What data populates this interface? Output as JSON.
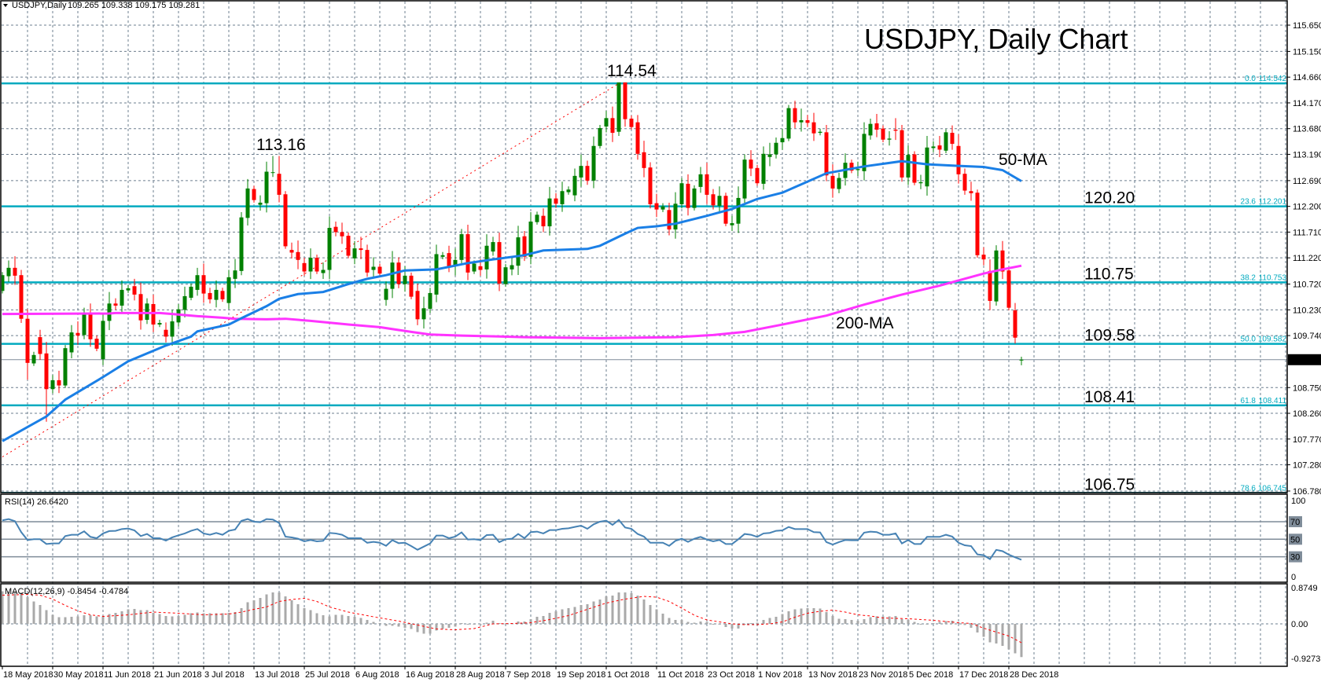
{
  "header": {
    "symbol": "USDJPY,Daily",
    "ohlc": "109.265 109.338 109.175 109.281"
  },
  "title": "USDJPY, Daily Chart",
  "annotations": {
    "peak_jul": "113.16",
    "peak_oct": "114.54",
    "ma50": "50-MA",
    "ma200": "200-MA"
  },
  "level_labels": [
    "120.20",
    "110.75",
    "109.58",
    "108.41",
    "106.75"
  ],
  "current_price": "109.281",
  "rsi_label": "RSI(14) 26.6420",
  "macd_label": "MACD(12,26,9) -0.8454 -0.4784",
  "colors": {
    "bull": "#008000",
    "bear": "#ff0000",
    "ma50": "#1a7fe6",
    "ma200": "#ff33ff",
    "fib": "#00aabf",
    "rsi": "#4682b4",
    "macd_hist": "#a9a9a9",
    "signal": "#ff0000",
    "grid": "#6e7f8f"
  },
  "chart_data": {
    "type": "candlestick",
    "title": "USDJPY, Daily Chart",
    "price_axis": {
      "range": [
        106.78,
        115.65
      ],
      "ticks": [
        "115.650",
        "115.150",
        "114.660",
        "114.170",
        "113.680",
        "113.190",
        "112.690",
        "112.200",
        "111.710",
        "111.220",
        "110.720",
        "110.230",
        "109.740",
        "108.750",
        "108.260",
        "107.770",
        "107.280",
        "106.780"
      ]
    },
    "dates": [
      {
        "label": "18 May 2018",
        "bar": 0
      },
      {
        "label": "30 May 2018",
        "bar": 8
      },
      {
        "label": "11 Jun 2018",
        "bar": 16
      },
      {
        "label": "21 Jun 2018",
        "bar": 24
      },
      {
        "label": "3 Jul 2018",
        "bar": 32
      },
      {
        "label": "13 Jul 2018",
        "bar": 40
      },
      {
        "label": "25 Jul 2018",
        "bar": 48
      },
      {
        "label": "6 Aug 2018",
        "bar": 56
      },
      {
        "label": "16 Aug 2018",
        "bar": 64
      },
      {
        "label": "28 Aug 2018",
        "bar": 72
      },
      {
        "label": "7 Sep 2018",
        "bar": 80
      },
      {
        "label": "19 Sep 2018",
        "bar": 88
      },
      {
        "label": "1 Oct 2018",
        "bar": 96
      },
      {
        "label": "11 Oct 2018",
        "bar": 104
      },
      {
        "label": "23 Oct 2018",
        "bar": 112
      },
      {
        "label": "1 Nov 2018",
        "bar": 120
      },
      {
        "label": "13 Nov 2018",
        "bar": 128
      },
      {
        "label": "23 Nov 2018",
        "bar": 136
      },
      {
        "label": "5 Dec 2018",
        "bar": 144
      },
      {
        "label": "17 Dec 2018",
        "bar": 152
      },
      {
        "label": "28 Dec 2018",
        "bar": 160
      }
    ],
    "open": [
      110.59,
      110.87,
      111.03,
      110.89,
      110.06,
      109.21,
      109.71,
      109.4,
      108.72,
      108.89,
      108.79,
      109.42,
      109.79,
      109.75,
      110.17,
      109.68,
      109.29,
      110.02,
      110.35,
      110.31,
      110.6,
      110.68,
      110.53,
      110.04,
      110.34,
      109.95,
      109.85,
      109.72,
      109.99,
      110.23,
      110.46,
      110.61,
      110.89,
      110.55,
      110.42,
      110.59,
      110.36,
      110.82,
      110.97,
      111.98,
      112.53,
      112.23,
      112.26,
      112.84,
      112.82,
      112.43,
      111.37,
      111.33,
      111.12,
      110.96,
      111.22,
      110.93,
      110.99,
      111.81,
      111.71,
      111.64,
      111.21,
      111.4,
      111.37,
      110.99,
      111.05,
      110.42,
      110.63,
      111.13,
      110.72,
      110.88,
      110.59,
      110.05,
      110.25,
      110.52,
      111.24,
      111.31,
      111.06,
      111.18,
      111.67,
      110.96,
      111.06,
      111.0,
      111.34,
      111.52,
      110.72,
      111.0,
      111.07,
      111.63,
      111.24,
      111.9,
      112.02,
      111.82,
      112.35,
      112.24,
      112.47,
      112.41,
      112.75,
      112.97,
      112.69,
      113.35,
      113.72,
      113.88,
      113.62,
      114.56,
      113.87,
      113.8,
      113.23,
      112.94,
      112.26,
      112.14,
      112.13,
      111.76,
      112.24,
      112.63,
      112.17,
      112.57,
      112.81,
      112.43,
      112.21,
      112.4,
      111.84,
      111.87,
      112.35,
      113.09,
      112.93,
      112.63,
      113.14,
      113.19,
      113.42,
      113.49,
      114.07,
      113.8,
      113.84,
      113.8,
      113.6,
      113.61,
      112.78,
      112.53,
      112.74,
      113.03,
      112.89,
      112.87,
      113.55,
      113.78,
      113.68,
      113.47,
      113.66,
      113.65,
      112.75,
      113.19,
      112.64,
      112.58,
      113.31,
      113.36,
      113.26,
      113.6,
      113.35,
      112.82,
      112.49,
      112.46,
      111.28,
      110.97,
      110.39,
      111.36,
      110.98,
      110.22,
      109.265
    ],
    "close": [
      110.89,
      111.03,
      110.88,
      110.06,
      109.22,
      109.37,
      109.39,
      108.72,
      108.89,
      108.79,
      109.5,
      109.8,
      109.74,
      110.17,
      109.67,
      109.49,
      110.02,
      110.35,
      110.31,
      110.61,
      110.64,
      110.52,
      110.03,
      110.35,
      109.95,
      109.98,
      109.72,
      110.01,
      110.24,
      110.49,
      110.67,
      110.89,
      110.54,
      110.43,
      110.61,
      110.43,
      110.85,
      110.98,
      111.99,
      112.54,
      112.32,
      112.27,
      112.86,
      112.85,
      112.42,
      111.44,
      111.32,
      111.18,
      110.96,
      111.22,
      110.96,
      110.99,
      111.79,
      111.71,
      111.63,
      111.26,
      111.4,
      111.37,
      110.94,
      111.05,
      110.92,
      110.63,
      111.13,
      110.72,
      110.88,
      110.48,
      110.05,
      110.26,
      110.55,
      111.29,
      111.27,
      111.06,
      111.18,
      111.67,
      110.94,
      111.11,
      110.99,
      111.45,
      111.52,
      110.73,
      111.04,
      111.08,
      111.61,
      111.24,
      111.91,
      112.04,
      111.82,
      112.35,
      112.25,
      112.49,
      112.52,
      112.78,
      112.97,
      112.69,
      113.35,
      113.69,
      113.88,
      113.6,
      114.56,
      113.86,
      113.71,
      113.2,
      112.93,
      112.24,
      112.14,
      112.2,
      111.76,
      112.25,
      112.64,
      112.17,
      112.54,
      112.81,
      112.42,
      112.22,
      112.4,
      111.87,
      111.88,
      112.36,
      113.09,
      112.92,
      112.64,
      113.2,
      113.19,
      113.41,
      113.5,
      114.07,
      113.8,
      113.84,
      113.79,
      113.59,
      113.62,
      112.79,
      112.54,
      112.74,
      113.03,
      112.88,
      112.91,
      113.58,
      113.77,
      113.66,
      113.47,
      113.49,
      113.64,
      112.75,
      113.18,
      112.65,
      112.66,
      113.32,
      113.34,
      113.28,
      113.61,
      113.39,
      112.81,
      112.5,
      112.45,
      111.27,
      111.19,
      110.4,
      111.36,
      110.96,
      110.27,
      109.7,
      109.281
    ],
    "high_overrides": {
      "42": 113.05,
      "43": 113.16,
      "44": 113.16,
      "98": 114.55,
      "99": 114.55,
      "162": 109.338
    },
    "low_overrides": {
      "4": 108.9,
      "7": 108.1,
      "162": 109.175
    },
    "ma50": [
      [
        0,
        107.73
      ],
      [
        7,
        108.2
      ],
      [
        10,
        108.52
      ],
      [
        16,
        108.95
      ],
      [
        20,
        109.25
      ],
      [
        26,
        109.55
      ],
      [
        30,
        109.72
      ],
      [
        31,
        109.82
      ],
      [
        36,
        109.95
      ],
      [
        38,
        110.07
      ],
      [
        42,
        110.3
      ],
      [
        44,
        110.44
      ],
      [
        47,
        110.53
      ],
      [
        51,
        110.57
      ],
      [
        55,
        110.72
      ],
      [
        58,
        110.82
      ],
      [
        61,
        110.89
      ],
      [
        64,
        110.98
      ],
      [
        69,
        111.0
      ],
      [
        74,
        111.12
      ],
      [
        78,
        111.19
      ],
      [
        83,
        111.27
      ],
      [
        86,
        111.36
      ],
      [
        93,
        111.39
      ],
      [
        95,
        111.45
      ],
      [
        99,
        111.68
      ],
      [
        101,
        111.79
      ],
      [
        104,
        111.82
      ],
      [
        107,
        111.87
      ],
      [
        112,
        112.02
      ],
      [
        116,
        112.15
      ],
      [
        120,
        112.34
      ],
      [
        124,
        112.46
      ],
      [
        131,
        112.83
      ],
      [
        137,
        112.96
      ],
      [
        143,
        113.06
      ],
      [
        147,
        113.0
      ],
      [
        152,
        112.97
      ],
      [
        156,
        112.95
      ],
      [
        159,
        112.89
      ],
      [
        162,
        112.68
      ]
    ],
    "ma200": [
      [
        0,
        110.15
      ],
      [
        17,
        110.16
      ],
      [
        18,
        110.17
      ],
      [
        25,
        110.17
      ],
      [
        27,
        110.15
      ],
      [
        31,
        110.11
      ],
      [
        35,
        110.08
      ],
      [
        37,
        110.06
      ],
      [
        42,
        110.05
      ],
      [
        45,
        110.06
      ],
      [
        49,
        110.02
      ],
      [
        55,
        109.95
      ],
      [
        60,
        109.9
      ],
      [
        65,
        109.81
      ],
      [
        68,
        109.76
      ],
      [
        73,
        109.74
      ],
      [
        83,
        109.71
      ],
      [
        95,
        109.69
      ],
      [
        107,
        109.71
      ],
      [
        113,
        109.75
      ],
      [
        118,
        109.81
      ],
      [
        124,
        109.95
      ],
      [
        131,
        110.12
      ],
      [
        137,
        110.33
      ],
      [
        143,
        110.52
      ],
      [
        149,
        110.69
      ],
      [
        152,
        110.79
      ],
      [
        156,
        110.92
      ],
      [
        159,
        111.0
      ],
      [
        162,
        111.07
      ]
    ],
    "trendline": [
      [
        0,
        107.43
      ],
      [
        98,
        114.54
      ]
    ],
    "fib": [
      {
        "level": "0.0",
        "price": "114.542"
      },
      {
        "level": "23.6",
        "price": "112.201"
      },
      {
        "level": "38.2",
        "price": "110.753"
      },
      {
        "level": "50.0",
        "price": "109.582"
      },
      {
        "level": "61.8",
        "price": "108.411"
      },
      {
        "level": "78.6",
        "price": "106.745"
      }
    ],
    "rsi": {
      "period": 14,
      "levels": [
        "70",
        "50",
        "30"
      ],
      "axis": [
        "100",
        "0"
      ],
      "values": [
        71.5,
        73,
        70.6,
        58.1,
        49.1,
        50,
        50,
        44.6,
        45.2,
        45.2,
        53.6,
        55.1,
        55.1,
        59,
        52.7,
        51.2,
        56.6,
        59.3,
        59.6,
        61.6,
        62.2,
        60.1,
        53.6,
        56,
        51.2,
        51.2,
        48.5,
        52.1,
        54.5,
        56.6,
        59.6,
        61.6,
        56.6,
        55.1,
        57.2,
        55.1,
        59.6,
        61,
        71,
        73,
        70,
        69.4,
        73,
        72.4,
        68.5,
        53,
        52.1,
        50.6,
        47.6,
        49.1,
        47.6,
        48.2,
        57.2,
        56.6,
        55.1,
        51.2,
        51.2,
        51.2,
        46,
        47,
        46,
        42.5,
        49,
        45.5,
        46,
        42.2,
        38,
        41.6,
        45.2,
        54.2,
        54.2,
        51.2,
        53,
        57.8,
        49.7,
        50,
        49.1,
        54.8,
        55.1,
        46.7,
        50,
        50.6,
        56,
        51.2,
        58.1,
        58.7,
        56.6,
        60.4,
        60.4,
        61.9,
        62.5,
        64,
        65.5,
        61.9,
        67,
        70,
        71.2,
        66.4,
        72,
        63.4,
        61.9,
        56,
        53,
        46,
        46,
        46,
        42.5,
        48.2,
        50.6,
        47,
        50.6,
        52.7,
        49.7,
        47.6,
        49.1,
        44.6,
        44.6,
        50,
        56,
        55.1,
        52.7,
        56.6,
        57.2,
        59.6,
        60.1,
        64,
        61.6,
        61.6,
        61.6,
        58.1,
        57.8,
        46.7,
        44,
        46.7,
        49.1,
        48.8,
        48.8,
        57.5,
        58.7,
        58.1,
        55.1,
        55.1,
        56.6,
        45.2,
        49.1,
        44.6,
        44.6,
        52.7,
        52.7,
        52.7,
        55.1,
        53,
        46,
        43.1,
        42.2,
        32.7,
        31.8,
        27.3,
        37.9,
        36.4,
        32.4,
        29.4,
        26.642
      ]
    },
    "macd": {
      "axis": [
        "0.8749",
        "0.00",
        "-0.9273"
      ],
      "hist": [
        0.83,
        0.82,
        0.81,
        0.8,
        0.68,
        0.57,
        0.48,
        0.35,
        0.23,
        0.17,
        0.17,
        0.18,
        0.19,
        0.22,
        0.22,
        0.19,
        0.19,
        0.25,
        0.28,
        0.32,
        0.37,
        0.38,
        0.35,
        0.35,
        0.28,
        0.25,
        0.2,
        0.19,
        0.2,
        0.23,
        0.27,
        0.29,
        0.27,
        0.27,
        0.27,
        0.27,
        0.28,
        0.3,
        0.4,
        0.55,
        0.6,
        0.66,
        0.75,
        0.8,
        0.8,
        0.7,
        0.6,
        0.5,
        0.4,
        0.35,
        0.27,
        0.22,
        0.19,
        0.23,
        0.23,
        0.2,
        0.18,
        0.15,
        0.1,
        0.05,
        0.02,
        -0.05,
        -0.05,
        -0.07,
        -0.1,
        -0.13,
        -0.21,
        -0.25,
        -0.25,
        -0.17,
        -0.13,
        -0.1,
        -0.07,
        0.02,
        -0.01,
        -0.01,
        -0.01,
        0.03,
        0.08,
        0.02,
        0.01,
        0.01,
        0.06,
        0.06,
        0.12,
        0.18,
        0.2,
        0.28,
        0.32,
        0.37,
        0.4,
        0.43,
        0.48,
        0.5,
        0.57,
        0.62,
        0.7,
        0.72,
        0.8,
        0.8,
        0.78,
        0.72,
        0.62,
        0.48,
        0.37,
        0.26,
        0.15,
        0.1,
        0.1,
        0.05,
        0.03,
        0.06,
        0.05,
        0,
        0,
        -0.08,
        -0.12,
        -0.12,
        -0.01,
        0.02,
        0.03,
        0.1,
        0.15,
        0.18,
        0.25,
        0.32,
        0.37,
        0.39,
        0.4,
        0.4,
        0.39,
        0.3,
        0.2,
        0.13,
        0.12,
        0.1,
        0.08,
        0.12,
        0.17,
        0.19,
        0.19,
        0.19,
        0.2,
        0.12,
        0.1,
        0.05,
        0,
        0,
        0.02,
        0.05,
        0.07,
        0.08,
        0.03,
        -0.03,
        -0.1,
        -0.22,
        -0.33,
        -0.47,
        -0.5,
        -0.56,
        -0.65,
        -0.75,
        -0.8454
      ],
      "signal": [
        [
          0,
          0.73
        ],
        [
          4,
          0.75
        ],
        [
          6,
          0.73
        ],
        [
          8,
          0.63
        ],
        [
          10,
          0.47
        ],
        [
          12,
          0.33
        ],
        [
          14,
          0.23
        ],
        [
          16,
          0.19
        ],
        [
          20,
          0.23
        ],
        [
          24,
          0.3
        ],
        [
          28,
          0.27
        ],
        [
          32,
          0.23
        ],
        [
          36,
          0.25
        ],
        [
          38,
          0.3
        ],
        [
          40,
          0.37
        ],
        [
          42,
          0.43
        ],
        [
          44,
          0.57
        ],
        [
          46,
          0.62
        ],
        [
          48,
          0.65
        ],
        [
          50,
          0.57
        ],
        [
          52,
          0.43
        ],
        [
          55,
          0.3
        ],
        [
          59,
          0.18
        ],
        [
          63,
          0.07
        ],
        [
          66,
          -0.03
        ],
        [
          69,
          -0.13
        ],
        [
          72,
          -0.15
        ],
        [
          75,
          -0.12
        ],
        [
          78,
          0
        ],
        [
          81,
          0.01
        ],
        [
          84,
          0.03
        ],
        [
          87,
          0.11
        ],
        [
          90,
          0.21
        ],
        [
          93,
          0.37
        ],
        [
          96,
          0.53
        ],
        [
          99,
          0.63
        ],
        [
          102,
          0.7
        ],
        [
          104,
          0.68
        ],
        [
          106,
          0.57
        ],
        [
          108,
          0.4
        ],
        [
          110,
          0.22
        ],
        [
          112,
          0.1
        ],
        [
          114,
          0.05
        ],
        [
          116,
          0
        ],
        [
          118,
          -0.02
        ],
        [
          120,
          -0.02
        ],
        [
          122,
          0
        ],
        [
          124,
          0.05
        ],
        [
          126,
          0.17
        ],
        [
          128,
          0.27
        ],
        [
          130,
          0.32
        ],
        [
          132,
          0.35
        ],
        [
          134,
          0.3
        ],
        [
          136,
          0.23
        ],
        [
          138,
          0.2
        ],
        [
          140,
          0.15
        ],
        [
          144,
          0.13
        ],
        [
          148,
          0.09
        ],
        [
          152,
          0.03
        ],
        [
          154,
          0.01
        ],
        [
          156,
          -0.11
        ],
        [
          158,
          -0.21
        ],
        [
          160,
          -0.31
        ],
        [
          162,
          -0.4784
        ]
      ]
    }
  }
}
